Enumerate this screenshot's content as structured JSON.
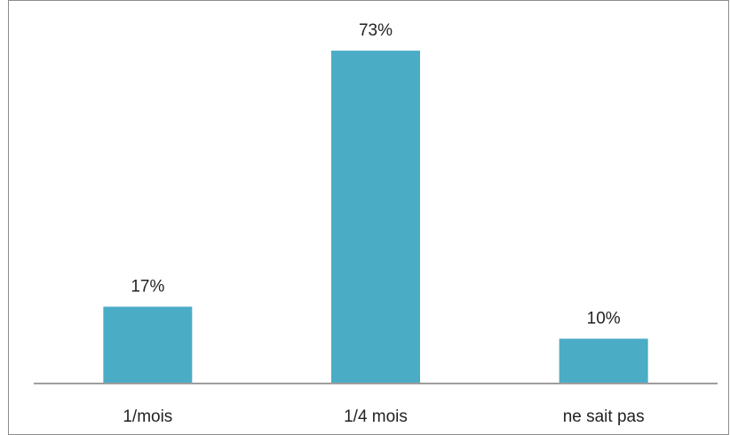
{
  "chart_data": {
    "type": "bar",
    "categories": [
      "1/mois",
      "1/4 mois",
      "ne sait pas"
    ],
    "values": [
      17,
      73,
      10
    ],
    "data_labels": [
      "17%",
      "73%",
      "10%"
    ],
    "ylim": [
      0,
      80
    ],
    "grid": false,
    "legend": "none",
    "colors": {
      "bar": "#4bacc6",
      "axis": "#7f7f7f",
      "frame": "#8c8c8c",
      "text": "#222222"
    }
  }
}
